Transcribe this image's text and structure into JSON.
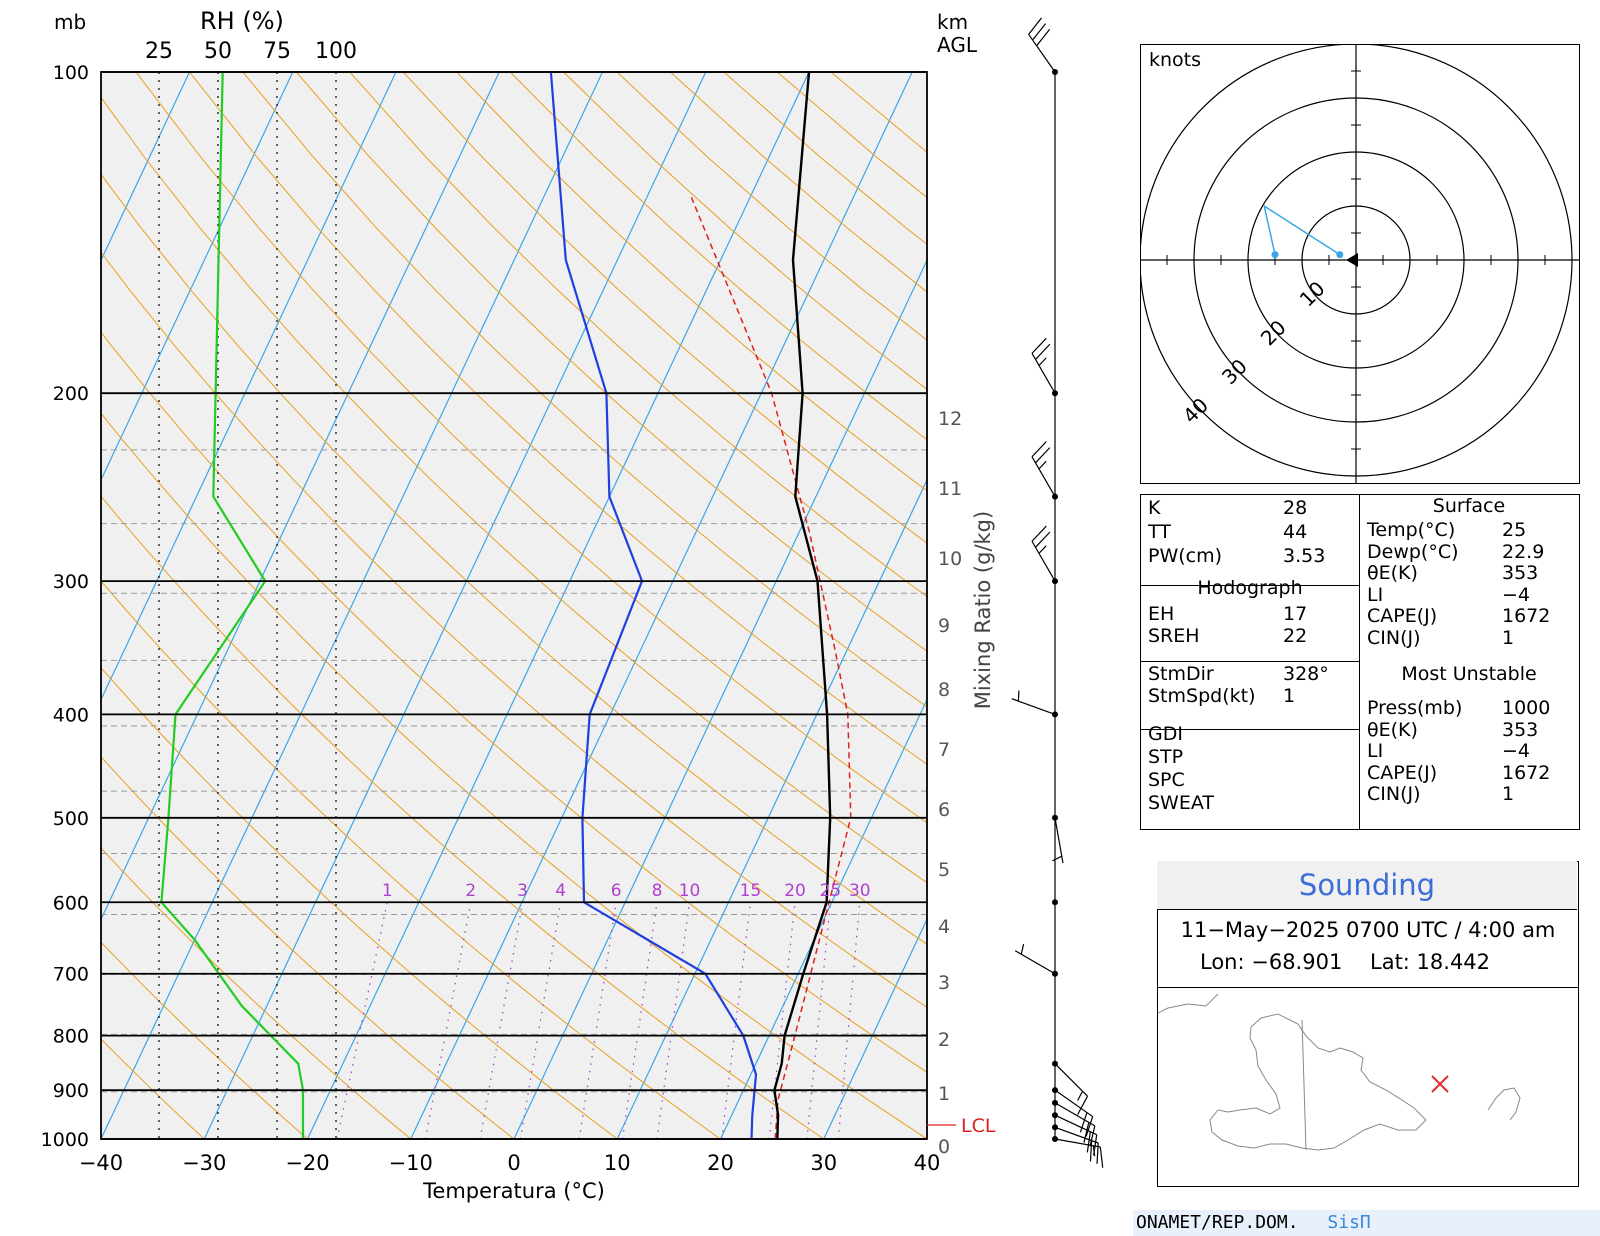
{
  "skewt": {
    "y_label_mb": "mb",
    "rh_label": "RH (%)",
    "rh_ticks": [
      "25",
      "50",
      "75",
      "100"
    ],
    "km_label_top": "km",
    "km_label_bottom": "AGL",
    "xlabel": "Temperatura (°C)",
    "mixing_ratio_label": "Mixing Ratio (g/kg)",
    "lcl_label": "LCL",
    "pressure_ticks": [
      "100",
      "200",
      "300",
      "400",
      "500",
      "600",
      "700",
      "800",
      "900",
      "1000"
    ],
    "temp_ticks": [
      "−40",
      "−30",
      "−20",
      "−10",
      "0",
      "10",
      "20",
      "30",
      "40"
    ],
    "km_ticks": [
      "0",
      "1",
      "2",
      "3",
      "4",
      "5",
      "6",
      "7",
      "8",
      "9",
      "10",
      "11",
      "12"
    ],
    "mixing_ratio_ticks": [
      "1",
      "2",
      "3",
      "4",
      "6",
      "8",
      "10",
      "15",
      "20",
      "25",
      "30"
    ],
    "colors": {
      "temperature": "#000000",
      "dewpoint": "#1f3fe0",
      "rh": "#22cc22",
      "parcel": "#e02020",
      "isotherm": "#3aa6e6",
      "dry_adiabat": "#e8a020",
      "mixing_ratio": "#b040d0",
      "background": "#f0f0f0"
    }
  },
  "chart_data": [
    {
      "type": "line",
      "name": "skew-T log-P sounding",
      "ylabel": "mb",
      "xlabel": "Temperatura (°C)",
      "xlim": [
        -40,
        40
      ],
      "ylim": [
        1000,
        100
      ],
      "y_scale": "log",
      "series": [
        {
          "name": "temperature",
          "points": [
            [
              25.5,
              1000
            ],
            [
              24.5,
              950
            ],
            [
              23,
              900
            ],
            [
              22.5,
              850
            ],
            [
              21.5,
              800
            ],
            [
              20.5,
              700
            ],
            [
              19.5,
              600
            ],
            [
              16,
              500
            ],
            [
              11,
              400
            ],
            [
              4,
              300
            ],
            [
              -2,
              250
            ],
            [
              -6,
              200
            ],
            [
              -13,
              150
            ],
            [
              -20,
              100
            ]
          ]
        },
        {
          "name": "dewpoint",
          "points": [
            [
              23,
              1000
            ],
            [
              22,
              950
            ],
            [
              20.5,
              870
            ],
            [
              17.5,
              800
            ],
            [
              11,
              700
            ],
            [
              -4,
              600
            ],
            [
              -8,
              500
            ],
            [
              -12,
              400
            ],
            [
              -13,
              300
            ],
            [
              -20,
              250
            ],
            [
              -25,
              200
            ],
            [
              -35,
              150
            ],
            [
              -45,
              100
            ]
          ]
        },
        {
          "name": "parcel",
          "points": [
            [
              25.3,
              1000
            ],
            [
              23.8,
              920
            ],
            [
              22.5,
              800
            ],
            [
              20.5,
              650
            ],
            [
              18,
              500
            ],
            [
              13,
              400
            ],
            [
              9,
              350
            ],
            [
              1,
              270
            ],
            [
              -9,
              200
            ],
            [
              -26,
              130
            ]
          ]
        },
        {
          "name": "relative humidity",
          "x_axis": "RH (%)",
          "points": [
            [
              86,
              1000
            ],
            [
              86,
              900
            ],
            [
              84,
              850
            ],
            [
              60,
              750
            ],
            [
              40,
              650
            ],
            [
              26,
              600
            ],
            [
              29,
              500
            ],
            [
              32,
              400
            ],
            [
              70,
              300
            ],
            [
              48,
              250
            ],
            [
              49,
              200
            ],
            [
              52,
              100
            ]
          ]
        }
      ],
      "wind_barbs_kt": [
        {
          "p": 1000,
          "dir": 100,
          "spd": 15
        },
        {
          "p": 975,
          "dir": 110,
          "spd": 20
        },
        {
          "p": 950,
          "dir": 115,
          "spd": 20
        },
        {
          "p": 925,
          "dir": 120,
          "spd": 20
        },
        {
          "p": 900,
          "dir": 125,
          "spd": 20
        },
        {
          "p": 850,
          "dir": 135,
          "spd": 15
        },
        {
          "p": 700,
          "dir": 300,
          "spd": 5
        },
        {
          "p": 600,
          "dir": 0,
          "spd": 0
        },
        {
          "p": 500,
          "dir": 170,
          "spd": 5
        },
        {
          "p": 400,
          "dir": 290,
          "spd": 5
        },
        {
          "p": 300,
          "dir": 330,
          "spd": 25
        },
        {
          "p": 250,
          "dir": 330,
          "spd": 25
        },
        {
          "p": 200,
          "dir": 330,
          "spd": 25
        },
        {
          "p": 100,
          "dir": 325,
          "spd": 30
        }
      ]
    },
    {
      "type": "scatter",
      "name": "hodograph",
      "unit": "knots",
      "ring_labels": [
        "10",
        "20",
        "30",
        "40"
      ],
      "points": [
        [
          -3,
          1
        ],
        [
          -17,
          10
        ],
        [
          -15,
          1
        ]
      ]
    }
  ],
  "hodograph": {
    "unit_label": "knots"
  },
  "indices": {
    "left": [
      {
        "label": "K",
        "value": "28"
      },
      {
        "label": "TT",
        "value": "44"
      },
      {
        "label": "PW(cm)",
        "value": "3.53"
      }
    ],
    "hodograph_header": "Hodograph",
    "hodo": [
      {
        "label": "EH",
        "value": "17"
      },
      {
        "label": "SREH",
        "value": "22"
      }
    ],
    "storm": [
      {
        "label": "StmDir",
        "value": "328°"
      },
      {
        "label": "StmSpd(kt)",
        "value": "1"
      }
    ],
    "other": [
      "GDI",
      "STP",
      "SPC",
      "SWEAT"
    ],
    "surface_header": "Surface",
    "surface": [
      {
        "label": "Temp(°C)",
        "value": "25"
      },
      {
        "label": "Dewp(°C)",
        "value": "22.9"
      },
      {
        "label": "θE(K)",
        "value": "353"
      },
      {
        "label": "LI",
        "value": "−4"
      },
      {
        "label": "CAPE(J)",
        "value": "1672"
      },
      {
        "label": "CIN(J)",
        "value": "1"
      }
    ],
    "mu_header": "Most Unstable",
    "mu": [
      {
        "label": "Press(mb)",
        "value": "1000"
      },
      {
        "label": "θE(K)",
        "value": "353"
      },
      {
        "label": "LI",
        "value": "−4"
      },
      {
        "label": "CAPE(J)",
        "value": "1672"
      },
      {
        "label": "CIN(J)",
        "value": "1"
      }
    ]
  },
  "sounding": {
    "title": "Sounding",
    "datetime": "11−May−2025 0700 UTC / 4:00 am",
    "lon": "Lon: −68.901",
    "lat": "Lat: 18.442",
    "map_marker": "x-marker"
  },
  "footer": {
    "org": "ONAMET/REP.DOM.",
    "brand": "SisΠ"
  }
}
